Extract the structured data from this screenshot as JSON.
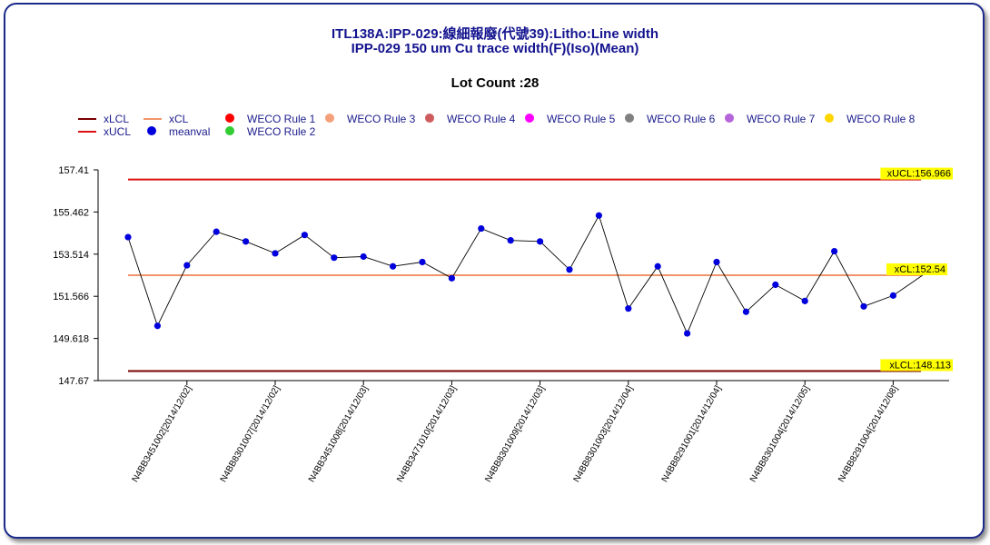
{
  "title_line1": "ITL138A:IPP-029:線細報廢(代號39):Litho:Line  width",
  "title_line2": "IPP-029 150 um Cu trace width(F)(Iso)(Mean)",
  "subtitle": "Lot Count :28",
  "legend": [
    {
      "label": "xLCL",
      "color": "#7a0000",
      "kind": "line"
    },
    {
      "label": "xCL",
      "color": "#f0956a",
      "kind": "line"
    },
    {
      "label": "WECO Rule 1",
      "color": "#ff0000",
      "kind": "dot"
    },
    {
      "label": "WECO Rule 3",
      "color": "#f4a07a",
      "kind": "dot"
    },
    {
      "label": "WECO Rule 4",
      "color": "#cd5c5c",
      "kind": "dot"
    },
    {
      "label": "WECO Rule 5",
      "color": "#ff00ff",
      "kind": "dot"
    },
    {
      "label": "WECO Rule 6",
      "color": "#808080",
      "kind": "dot"
    },
    {
      "label": "WECO Rule 7",
      "color": "#b565d9",
      "kind": "dot"
    },
    {
      "label": "WECO Rule 8",
      "color": "#ffd700",
      "kind": "dot"
    },
    {
      "label": "xUCL",
      "color": "#dd1111",
      "kind": "line"
    },
    {
      "label": "meanval",
      "color": "#0000dd",
      "kind": "dot"
    },
    {
      "label": "WECO Rule 2",
      "color": "#33cc33",
      "kind": "dot"
    }
  ],
  "chart_data": {
    "type": "line",
    "ylim": [
      147.67,
      157.41
    ],
    "yticks": [
      "157.41",
      "155.462",
      "153.514",
      "151.566",
      "149.618",
      "147.67"
    ],
    "xtick_labels": [
      "N4BB3451002[2014/12/02]",
      "N4BB8301007[2014/12/02]",
      "N4BB3451008[2014/12/03]",
      "N4BB3471010[2014/12/03]",
      "N4BB8301009[2014/12/03]",
      "N4BB8301003[2014/12/04]",
      "N4BB8291001[2014/12/04]",
      "N4BB8301004[2014/12/05]",
      "N4BB8291004[2014/12/08]"
    ],
    "xtick_point_index": [
      2,
      5,
      8,
      11,
      14,
      17,
      20,
      23,
      26
    ],
    "series": [
      {
        "name": "meanval",
        "values": [
          154.3,
          150.2,
          153.0,
          154.55,
          154.1,
          153.55,
          154.4,
          153.35,
          153.4,
          152.95,
          153.15,
          152.4,
          154.7,
          154.15,
          154.1,
          152.8,
          155.3,
          151.0,
          152.95,
          149.85,
          153.15,
          150.85,
          152.1,
          151.35,
          153.65,
          151.1,
          151.6,
          152.54
        ]
      }
    ],
    "limits": {
      "ucl": 156.966,
      "cl": 152.54,
      "lcl": 148.113
    },
    "limit_labels": {
      "ucl": "xUCL:156.966",
      "cl": "xCL:152.54",
      "lcl": "xLCL:148.113"
    },
    "colors": {
      "ucl": "#dd1111",
      "cl": "#f0956a",
      "lcl": "#7a0000",
      "point": "#0000dd",
      "label_bg": "#ffff00"
    }
  }
}
